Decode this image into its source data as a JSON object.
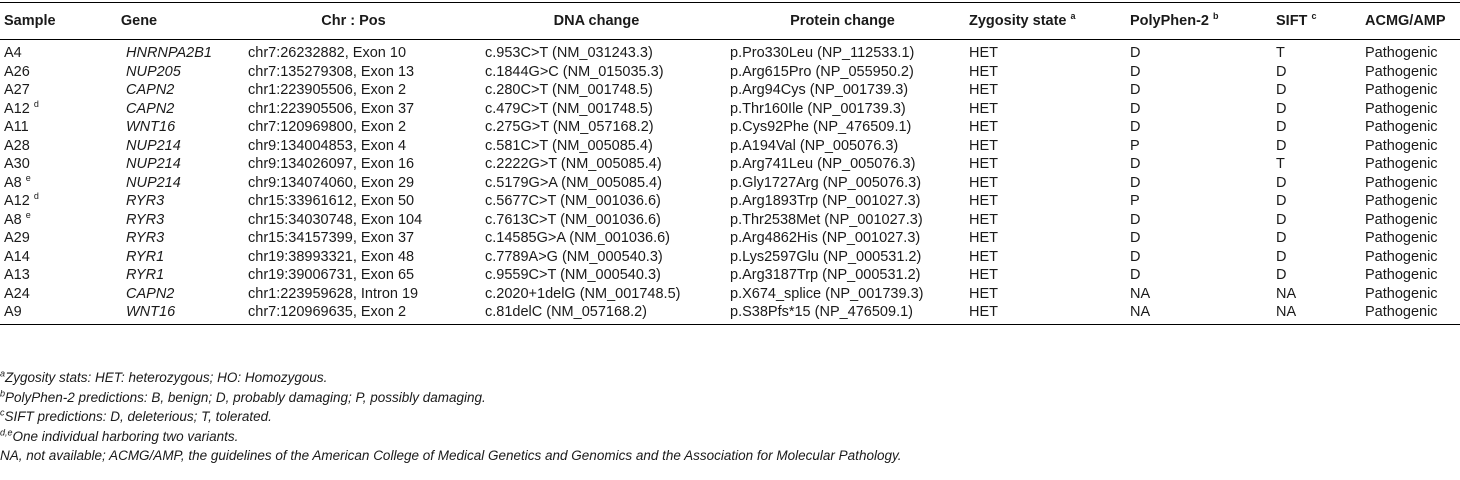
{
  "table": {
    "headers": [
      {
        "label": "Sample",
        "sup": ""
      },
      {
        "label": "Gene",
        "sup": ""
      },
      {
        "label": "Chr : Pos",
        "sup": ""
      },
      {
        "label": "DNA change",
        "sup": ""
      },
      {
        "label": "Protein change",
        "sup": ""
      },
      {
        "label": "Zygosity state",
        "sup": "a"
      },
      {
        "label": "PolyPhen-2",
        "sup": "b"
      },
      {
        "label": "SIFT",
        "sup": "c"
      },
      {
        "label": "ACMG/AMP",
        "sup": ""
      }
    ],
    "rows": [
      {
        "sample": "A4",
        "sample_sup": "",
        "gene": "HNRNPA2B1",
        "pos": "chr7:26232882, Exon 10",
        "dna": "c.953C>T (NM_031243.3)",
        "protein": "p.Pro330Leu (NP_112533.1)",
        "zygosity": "HET",
        "polyphen": "D",
        "sift": "T",
        "acmg": "Pathogenic"
      },
      {
        "sample": "A26",
        "sample_sup": "",
        "gene": "NUP205",
        "pos": "chr7:135279308, Exon 13",
        "dna": "c.1844G>C (NM_015035.3)",
        "protein": "p.Arg615Pro (NP_055950.2)",
        "zygosity": "HET",
        "polyphen": "D",
        "sift": "D",
        "acmg": "Pathogenic"
      },
      {
        "sample": "A27",
        "sample_sup": "",
        "gene": "CAPN2",
        "pos": "chr1:223905506, Exon 2",
        "dna": "c.280C>T (NM_001748.5)",
        "protein": "p.Arg94Cys (NP_001739.3)",
        "zygosity": "HET",
        "polyphen": "D",
        "sift": "D",
        "acmg": "Pathogenic"
      },
      {
        "sample": "A12",
        "sample_sup": "d",
        "gene": "CAPN2",
        "pos": "chr1:223905506, Exon 37",
        "dna": "c.479C>T (NM_001748.5)",
        "protein": "p.Thr160Ile (NP_001739.3)",
        "zygosity": "HET",
        "polyphen": "D",
        "sift": "D",
        "acmg": "Pathogenic"
      },
      {
        "sample": "A11",
        "sample_sup": "",
        "gene": "WNT16",
        "pos": "chr7:120969800, Exon 2",
        "dna": "c.275G>T (NM_057168.2)",
        "protein": "p.Cys92Phe (NP_476509.1)",
        "zygosity": "HET",
        "polyphen": "D",
        "sift": "D",
        "acmg": "Pathogenic"
      },
      {
        "sample": "A28",
        "sample_sup": "",
        "gene": "NUP214",
        "pos": "chr9:134004853, Exon 4",
        "dna": "c.581C>T (NM_005085.4)",
        "protein": "p.A194Val (NP_005076.3)",
        "zygosity": "HET",
        "polyphen": "P",
        "sift": "D",
        "acmg": "Pathogenic"
      },
      {
        "sample": "A30",
        "sample_sup": "",
        "gene": "NUP214",
        "pos": "chr9:134026097, Exon 16",
        "dna": "c.2222G>T (NM_005085.4)",
        "protein": "p.Arg741Leu (NP_005076.3)",
        "zygosity": "HET",
        "polyphen": "D",
        "sift": "T",
        "acmg": "Pathogenic"
      },
      {
        "sample": "A8",
        "sample_sup": "e",
        "gene": "NUP214",
        "pos": "chr9:134074060, Exon 29",
        "dna": "c.5179G>A (NM_005085.4)",
        "protein": "p.Gly1727Arg (NP_005076.3)",
        "zygosity": "HET",
        "polyphen": "D",
        "sift": "D",
        "acmg": "Pathogenic"
      },
      {
        "sample": "A12",
        "sample_sup": "d",
        "gene": "RYR3",
        "pos": "chr15:33961612, Exon 50",
        "dna": "c.5677C>T (NM_001036.6)",
        "protein": "p.Arg1893Trp (NP_001027.3)",
        "zygosity": "HET",
        "polyphen": "P",
        "sift": "D",
        "acmg": "Pathogenic"
      },
      {
        "sample": "A8",
        "sample_sup": "e",
        "gene": "RYR3",
        "pos": "chr15:34030748, Exon 104",
        "dna": "c.7613C>T (NM_001036.6)",
        "protein": "p.Thr2538Met (NP_001027.3)",
        "zygosity": "HET",
        "polyphen": "D",
        "sift": "D",
        "acmg": "Pathogenic"
      },
      {
        "sample": "A29",
        "sample_sup": "",
        "gene": "RYR3",
        "pos": "chr15:34157399, Exon 37",
        "dna": "c.14585G>A (NM_001036.6)",
        "protein": "p.Arg4862His (NP_001027.3)",
        "zygosity": "HET",
        "polyphen": "D",
        "sift": "D",
        "acmg": "Pathogenic"
      },
      {
        "sample": "A14",
        "sample_sup": "",
        "gene": "RYR1",
        "pos": "chr19:38993321, Exon 48",
        "dna": "c.7789A>G (NM_000540.3)",
        "protein": "p.Lys2597Glu (NP_000531.2)",
        "zygosity": "HET",
        "polyphen": "D",
        "sift": "D",
        "acmg": "Pathogenic"
      },
      {
        "sample": "A13",
        "sample_sup": "",
        "gene": "RYR1",
        "pos": "chr19:39006731, Exon 65",
        "dna": "c.9559C>T (NM_000540.3)",
        "protein": "p.Arg3187Trp (NP_000531.2)",
        "zygosity": "HET",
        "polyphen": "D",
        "sift": "D",
        "acmg": "Pathogenic"
      },
      {
        "sample": "A24",
        "sample_sup": "",
        "gene": "CAPN2",
        "pos": "chr1:223959628, Intron 19",
        "dna": "c.2020+1delG (NM_001748.5)",
        "protein": "p.X674_splice (NP_001739.3)",
        "zygosity": "HET",
        "polyphen": "NA",
        "sift": "NA",
        "acmg": "Pathogenic"
      },
      {
        "sample": "A9",
        "sample_sup": "",
        "gene": "WNT16",
        "pos": "chr7:120969635, Exon 2",
        "dna": "c.81delC (NM_057168.2)",
        "protein": "p.S38Pfs*15 (NP_476509.1)",
        "zygosity": "HET",
        "polyphen": "NA",
        "sift": "NA",
        "acmg": "Pathogenic"
      }
    ]
  },
  "footnotes": [
    {
      "sup": "a",
      "text": "Zygosity stats: HET: heterozygous; HO: Homozygous."
    },
    {
      "sup": "b",
      "text": "PolyPhen-2 predictions: B, benign; D, probably damaging; P, possibly damaging."
    },
    {
      "sup": "c",
      "text": "SIFT predictions: D, deleterious; T, tolerated."
    },
    {
      "sup": "d,e",
      "text": "One individual harboring two variants."
    },
    {
      "sup": "",
      "text": "NA, not available; ACMG/AMP, the guidelines of the American College of Medical Genetics and Genomics and the Association for Molecular Pathology."
    }
  ]
}
